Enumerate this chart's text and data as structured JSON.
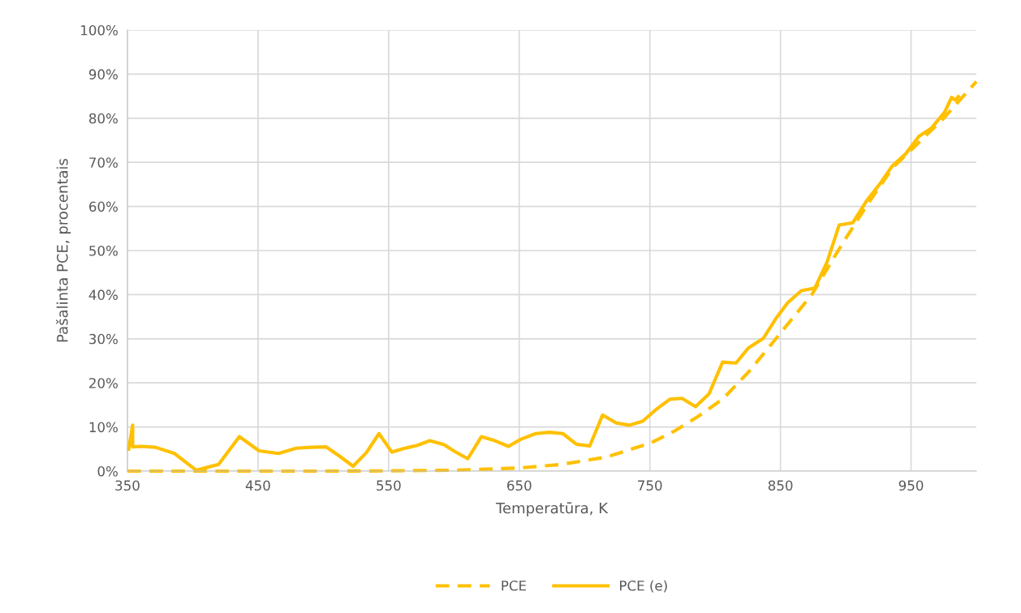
{
  "chart_data": {
    "type": "line",
    "xlabel": "Temperatūra, K",
    "ylabel": "Pašalinta PCE, procentais",
    "xlim": [
      350,
      1000
    ],
    "xticks": [
      350,
      450,
      550,
      650,
      750,
      850,
      950
    ],
    "ylim": [
      0,
      100
    ],
    "yticks": [
      {
        "value": 0,
        "label": "0%"
      },
      {
        "value": 10,
        "label": "10%"
      },
      {
        "value": 20,
        "label": "20%"
      },
      {
        "value": 30,
        "label": "30%"
      },
      {
        "value": 40,
        "label": "40%"
      },
      {
        "value": 50,
        "label": "50%"
      },
      {
        "value": 60,
        "label": "60%"
      },
      {
        "value": 70,
        "label": "70%"
      },
      {
        "value": 80,
        "label": "80%"
      },
      {
        "value": 90,
        "label": "90%"
      },
      {
        "value": 100,
        "label": "100%"
      }
    ],
    "grid": true,
    "legend": "bottom",
    "marker": "none",
    "series": [
      {
        "name": "PCE",
        "color": "#ffc000",
        "line_style": "dashed",
        "x": [
          350,
          400,
          450,
          500,
          550,
          600,
          650,
          682,
          717,
          750,
          769,
          787,
          806,
          826,
          847,
          874,
          895,
          916,
          936,
          949,
          975,
          1000
        ],
        "values": [
          0,
          0,
          0,
          0,
          0.05,
          0.2,
          0.7,
          1.5,
          3.2,
          6.3,
          9.1,
          12.4,
          16.4,
          22.6,
          30.2,
          40,
          50.4,
          60.2,
          68.8,
          72.5,
          80,
          88.3
        ]
      },
      {
        "name": "PCE (e)",
        "color": "#ffc000",
        "line_style": "solid",
        "x": [
          351,
          354,
          354,
          361,
          371.5,
          386,
          402.6,
          419.8,
          435.7,
          450.8,
          465.7,
          479.3,
          490.7,
          502,
          512.4,
          522.8,
          533,
          542.6,
          552.5,
          561.3,
          571.5,
          581.5,
          592.3,
          600.3,
          610.6,
          621,
          630.4,
          641.8,
          651,
          662.6,
          673,
          683.4,
          693.8,
          704,
          713.8,
          724.4,
          734.2,
          744.5,
          754.9,
          765.3,
          774.6,
          785,
          795.3,
          805.7,
          816,
          825.4,
          836.9,
          846.3,
          855.6,
          866,
          876.4,
          885.7,
          895,
          905.4,
          915.8,
          926.1,
          935.4,
          945.8,
          956.1,
          965.4,
          975.8,
          981,
          984,
          986.2
        ],
        "values": [
          5.0,
          10.4,
          5.5,
          5.6,
          5.4,
          4.0,
          0.2,
          1.5,
          7.8,
          4.6,
          4.0,
          5.2,
          5.4,
          5.5,
          3.4,
          1.1,
          4.2,
          8.5,
          4.3,
          5.1,
          5.8,
          6.9,
          6.0,
          4.5,
          2.8,
          7.8,
          7.0,
          5.6,
          7.2,
          8.5,
          8.8,
          8.5,
          6.1,
          5.7,
          12.7,
          10.9,
          10.4,
          11.3,
          14.0,
          16.3,
          16.5,
          14.6,
          17.5,
          24.7,
          24.5,
          27.9,
          30.1,
          34.5,
          38.2,
          40.9,
          41.5,
          47.4,
          55.8,
          56.3,
          61.2,
          65.1,
          69.1,
          71.9,
          75.9,
          77.7,
          81.4,
          84.7,
          84.1,
          84.9
        ]
      }
    ]
  }
}
